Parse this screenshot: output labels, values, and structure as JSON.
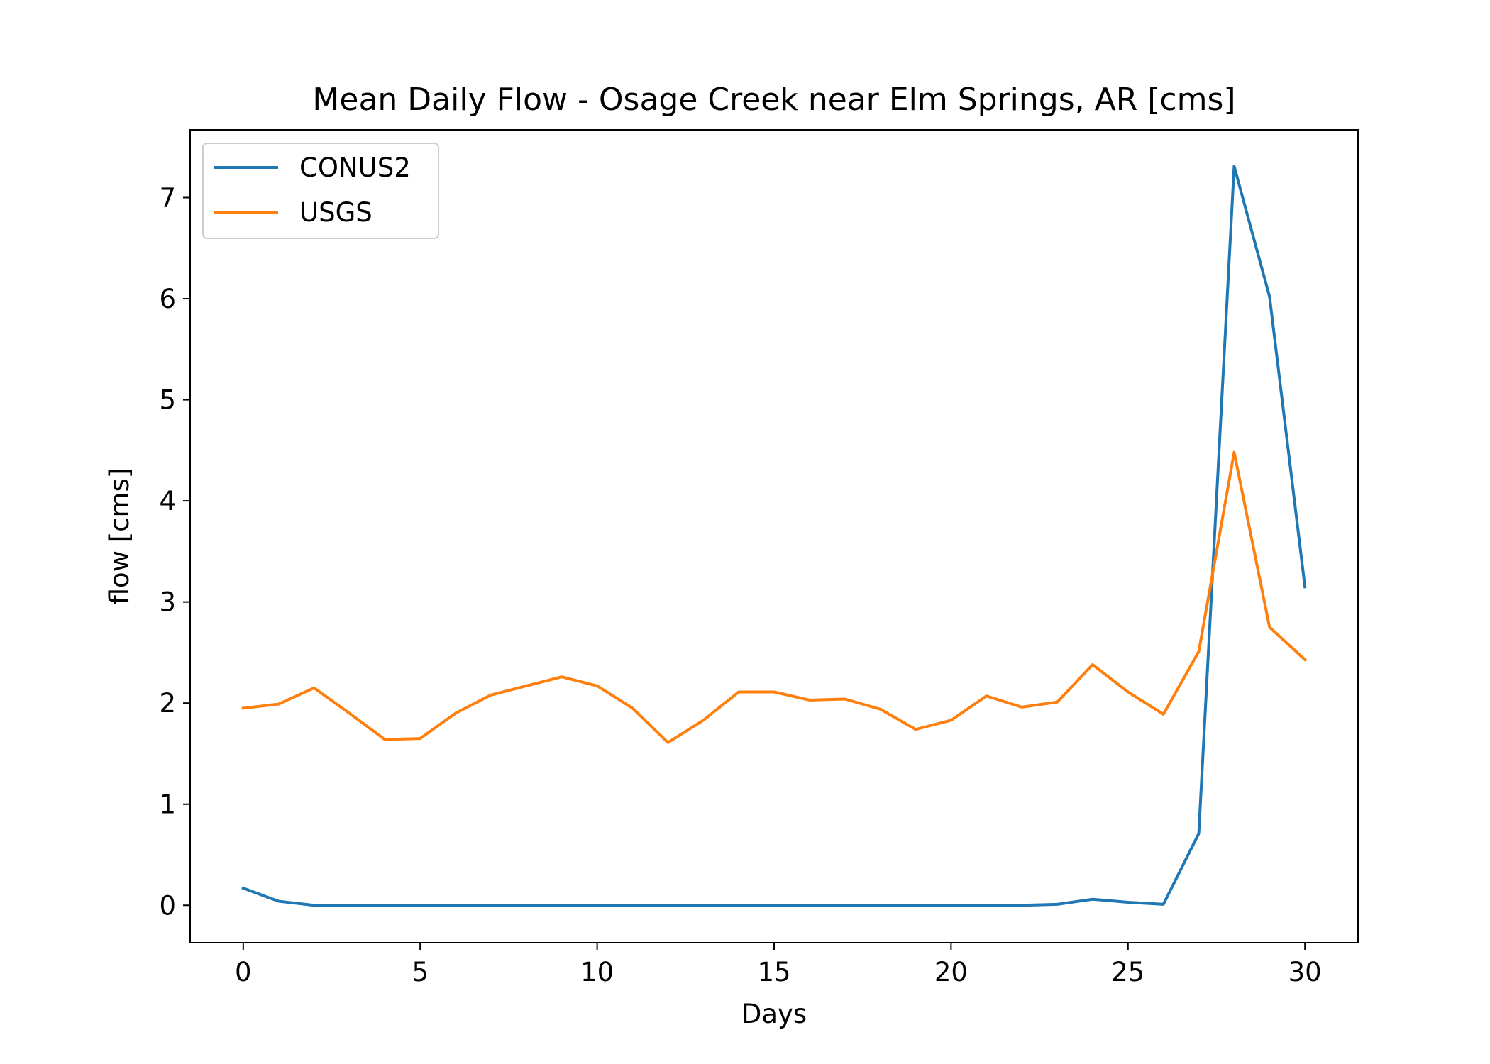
{
  "chart_data": {
    "type": "line",
    "title": "Mean Daily Flow - Osage Creek near Elm Springs, AR [cms]",
    "xlabel": "Days",
    "ylabel": "flow [cms]",
    "xlim": [
      -1.5,
      31.5
    ],
    "ylim": [
      -0.37,
      7.67
    ],
    "x_ticks": [
      0,
      5,
      10,
      15,
      20,
      25,
      30
    ],
    "y_ticks": [
      0,
      1,
      2,
      3,
      4,
      5,
      6,
      7
    ],
    "grid": false,
    "legend_position": "upper-left",
    "x": [
      0,
      1,
      2,
      3,
      4,
      5,
      6,
      7,
      8,
      9,
      10,
      11,
      12,
      13,
      14,
      15,
      16,
      17,
      18,
      19,
      20,
      21,
      22,
      23,
      24,
      25,
      26,
      27,
      28,
      29,
      30
    ],
    "series": [
      {
        "name": "CONUS2",
        "color": "#1f77b4",
        "values": [
          0.17,
          0.04,
          0.0,
          0.0,
          0.0,
          0.0,
          0.0,
          0.0,
          0.0,
          0.0,
          0.0,
          0.0,
          0.0,
          0.0,
          0.0,
          0.0,
          0.0,
          0.0,
          0.0,
          0.0,
          0.0,
          0.0,
          0.0,
          0.01,
          0.06,
          0.03,
          0.01,
          0.71,
          7.31,
          6.02,
          3.15
        ]
      },
      {
        "name": "USGS",
        "color": "#ff7f0e",
        "values": [
          1.95,
          1.99,
          2.15,
          1.9,
          1.64,
          1.65,
          1.9,
          2.08,
          2.17,
          2.26,
          2.17,
          1.95,
          1.61,
          1.83,
          2.11,
          2.11,
          2.03,
          2.04,
          1.94,
          1.74,
          1.83,
          2.07,
          1.96,
          2.01,
          2.38,
          2.11,
          1.89,
          2.51,
          4.48,
          2.75,
          2.43
        ]
      }
    ]
  }
}
